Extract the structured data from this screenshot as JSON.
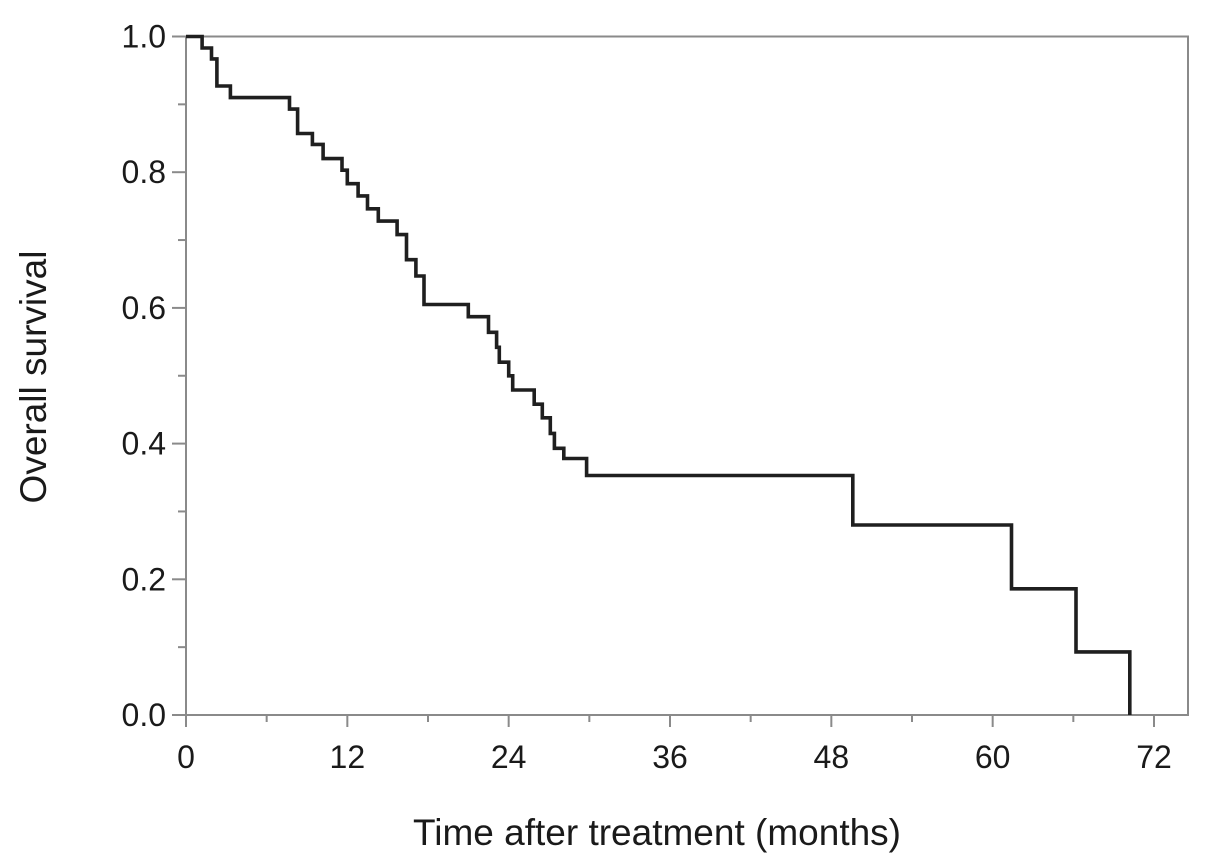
{
  "figure": {
    "background": "#ffffff"
  },
  "chart_data": {
    "type": "line",
    "subtype": "kaplan-meier-step",
    "title": "",
    "xlabel": "Time after treatment (months)",
    "ylabel": "Overall survival",
    "xlim": [
      0,
      72
    ],
    "ylim": [
      0.0,
      1.0
    ],
    "grid": false,
    "legend_position": "none",
    "x_major_ticks": [
      0,
      12,
      24,
      36,
      48,
      60,
      72
    ],
    "x_major_tick_labels": [
      "0",
      "12",
      "24",
      "36",
      "48",
      "60",
      "72"
    ],
    "x_minor_ticks": [
      6,
      18,
      30,
      42,
      54,
      66
    ],
    "y_major_ticks": [
      0.0,
      0.2,
      0.4,
      0.6,
      0.8,
      1.0
    ],
    "y_major_tick_labels": [
      "0.0",
      "0.2",
      "0.4",
      "0.6",
      "0.8",
      "1.0"
    ],
    "y_minor_ticks": [
      0.1,
      0.3,
      0.5,
      0.7,
      0.9
    ],
    "axis_color": "#8a8a8a",
    "curve_color": "#1f1f1f",
    "label_color": "#1a1a1a",
    "series": [
      {
        "name": "Overall survival",
        "style": "step-post",
        "points": [
          [
            0,
            1.0
          ],
          [
            1.2,
            0.983
          ],
          [
            1.9,
            0.967
          ],
          [
            2.3,
            0.927
          ],
          [
            3.3,
            0.91
          ],
          [
            7.7,
            0.893
          ],
          [
            8.3,
            0.857
          ],
          [
            9.4,
            0.841
          ],
          [
            10.2,
            0.82
          ],
          [
            11.6,
            0.803
          ],
          [
            12.0,
            0.783
          ],
          [
            12.8,
            0.765
          ],
          [
            13.5,
            0.746
          ],
          [
            14.3,
            0.728
          ],
          [
            15.7,
            0.708
          ],
          [
            16.4,
            0.671
          ],
          [
            17.1,
            0.647
          ],
          [
            17.7,
            0.605
          ],
          [
            21.0,
            0.587
          ],
          [
            22.5,
            0.564
          ],
          [
            23.1,
            0.542
          ],
          [
            23.3,
            0.52
          ],
          [
            24.0,
            0.5
          ],
          [
            24.3,
            0.479
          ],
          [
            25.9,
            0.458
          ],
          [
            26.5,
            0.438
          ],
          [
            27.1,
            0.415
          ],
          [
            27.4,
            0.393
          ],
          [
            28.1,
            0.378
          ],
          [
            29.8,
            0.353
          ],
          [
            49.6,
            0.28
          ],
          [
            61.4,
            0.186
          ],
          [
            66.2,
            0.093
          ],
          [
            70.2,
            0.0
          ]
        ]
      }
    ]
  }
}
